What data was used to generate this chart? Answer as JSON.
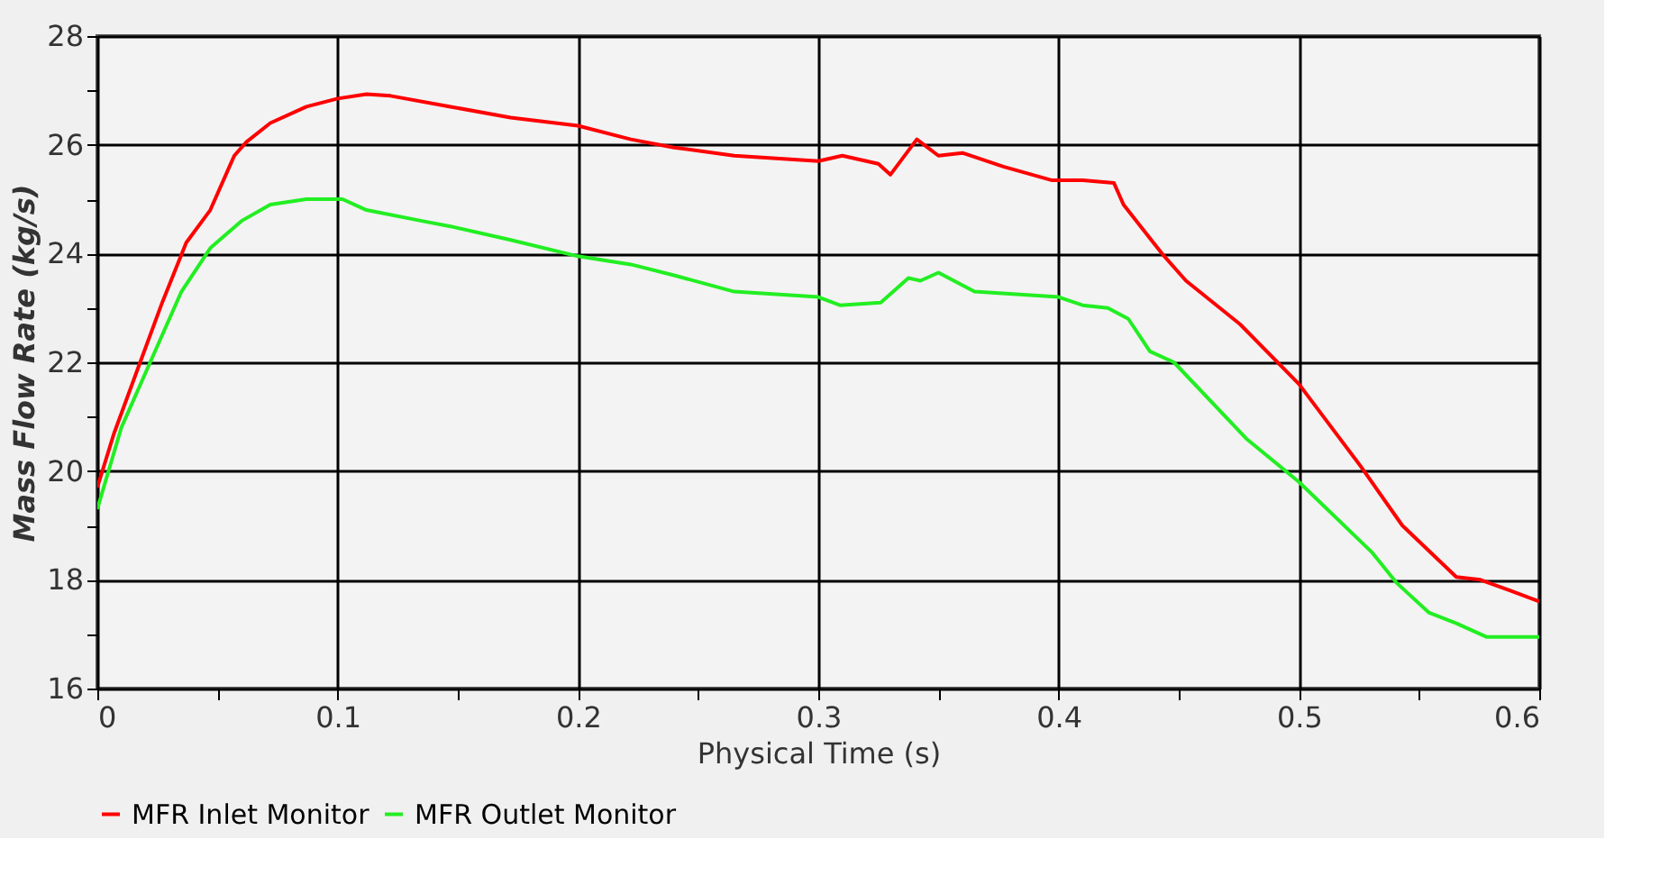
{
  "chart_data": {
    "type": "line",
    "xlabel": "Physical Time (s)",
    "ylabel": "Mass Flow Rate (kg/s)",
    "xlim": [
      0,
      0.6
    ],
    "ylim": [
      16,
      28
    ],
    "xticks": [
      0,
      {
        "value": 0.05,
        "label": null
      },
      0.1,
      {
        "value": 0.15,
        "label": null
      },
      0.2,
      {
        "value": 0.25,
        "label": null
      },
      0.3,
      {
        "value": 0.35,
        "label": null
      },
      0.4,
      {
        "value": 0.45,
        "label": null
      },
      0.5,
      {
        "value": 0.55,
        "label": null
      },
      0.6
    ],
    "yticks": [
      16,
      {
        "value": 17,
        "label": null
      },
      18,
      {
        "value": 19,
        "label": null
      },
      20,
      {
        "value": 21,
        "label": null
      },
      22,
      {
        "value": 23,
        "label": null
      },
      24,
      {
        "value": 25,
        "label": null
      },
      26,
      {
        "value": 27,
        "label": null
      },
      28
    ],
    "grid": true,
    "legend": "bottom",
    "marker": "none",
    "line_style": "solid",
    "series": [
      {
        "name": "MFR Inlet Monitor",
        "color": "#ff0000",
        "x": [
          0,
          0.007,
          0.017,
          0.027,
          0.037,
          0.047,
          0.057,
          0.062,
          0.072,
          0.087,
          0.1,
          0.112,
          0.122,
          0.147,
          0.172,
          0.2,
          0.222,
          0.24,
          0.265,
          0.3,
          0.31,
          0.325,
          0.33,
          0.341,
          0.35,
          0.36,
          0.377,
          0.397,
          0.41,
          0.423,
          0.427,
          0.443,
          0.453,
          0.4755,
          0.5,
          0.5255,
          0.543,
          0.5655,
          0.5755,
          0.588,
          0.6
        ],
        "values": [
          19.7,
          20.7,
          21.9,
          23.1,
          24.2,
          24.8,
          25.8,
          26.05,
          26.4,
          26.7,
          26.85,
          26.93,
          26.9,
          26.7,
          26.5,
          26.35,
          26.1,
          25.95,
          25.8,
          25.7,
          25.8,
          25.65,
          25.45,
          26.1,
          25.8,
          25.85,
          25.6,
          25.35,
          25.35,
          25.3,
          24.9,
          24.0,
          23.5,
          22.7,
          21.6,
          20.1,
          19.0,
          18.05,
          18.0,
          17.8,
          17.6
        ]
      },
      {
        "name": "MFR Outlet Monitor",
        "color": "#22ee22",
        "x": [
          0,
          0.01,
          0.022,
          0.035,
          0.047,
          0.06,
          0.072,
          0.087,
          0.102,
          0.112,
          0.135,
          0.147,
          0.172,
          0.2,
          0.222,
          0.24,
          0.265,
          0.3,
          0.309,
          0.326,
          0.3375,
          0.3425,
          0.35,
          0.365,
          0.4,
          0.41,
          0.4205,
          0.429,
          0.438,
          0.448,
          0.478,
          0.5,
          0.5305,
          0.5405,
          0.554,
          0.5655,
          0.578,
          0.6
        ],
        "values": [
          19.3,
          20.8,
          22.0,
          23.3,
          24.1,
          24.6,
          24.9,
          25.0,
          25.0,
          24.8,
          24.6,
          24.5,
          24.25,
          23.95,
          23.8,
          23.6,
          23.3,
          23.2,
          23.05,
          23.1,
          23.55,
          23.5,
          23.65,
          23.3,
          23.2,
          23.05,
          23.0,
          22.8,
          22.2,
          22.0,
          20.6,
          19.8,
          18.5,
          17.95,
          17.4,
          17.2,
          16.95,
          16.95
        ]
      }
    ]
  }
}
